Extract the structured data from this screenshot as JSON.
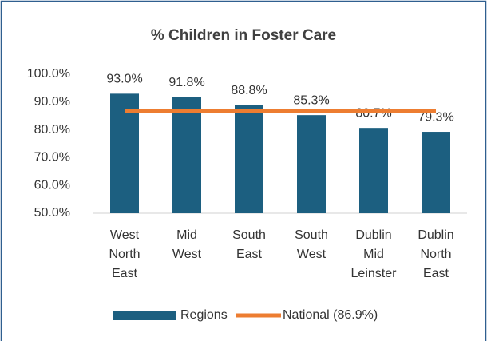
{
  "chart_data": {
    "type": "bar",
    "title": "% Children in Foster Care",
    "categories": [
      "West North East",
      "Mid West",
      "South East",
      "South West",
      "Dublin Mid Leinster",
      "Dublin North East"
    ],
    "series": [
      {
        "name": "Regions",
        "type": "bar",
        "color": "#1c5f80",
        "values": [
          93.0,
          91.8,
          88.8,
          85.3,
          80.7,
          79.3
        ],
        "value_labels": [
          "93.0%",
          "91.8%",
          "88.8%",
          "85.3%",
          "80.7%",
          "79.3%"
        ]
      },
      {
        "name": "National (86.9%)",
        "type": "line",
        "color": "#ed7d31",
        "values": [
          86.9,
          86.9,
          86.9,
          86.9,
          86.9,
          86.9
        ]
      }
    ],
    "ylim": [
      50,
      100
    ],
    "yticks": [
      {
        "value": 50,
        "label": "50.0%"
      },
      {
        "value": 60,
        "label": "60.0%"
      },
      {
        "value": 70,
        "label": "70.0%"
      },
      {
        "value": 80,
        "label": "80.0%"
      },
      {
        "value": 90,
        "label": "90.0%"
      },
      {
        "value": 100,
        "label": "100.0%"
      }
    ],
    "grid": false,
    "legend": "bottom"
  }
}
